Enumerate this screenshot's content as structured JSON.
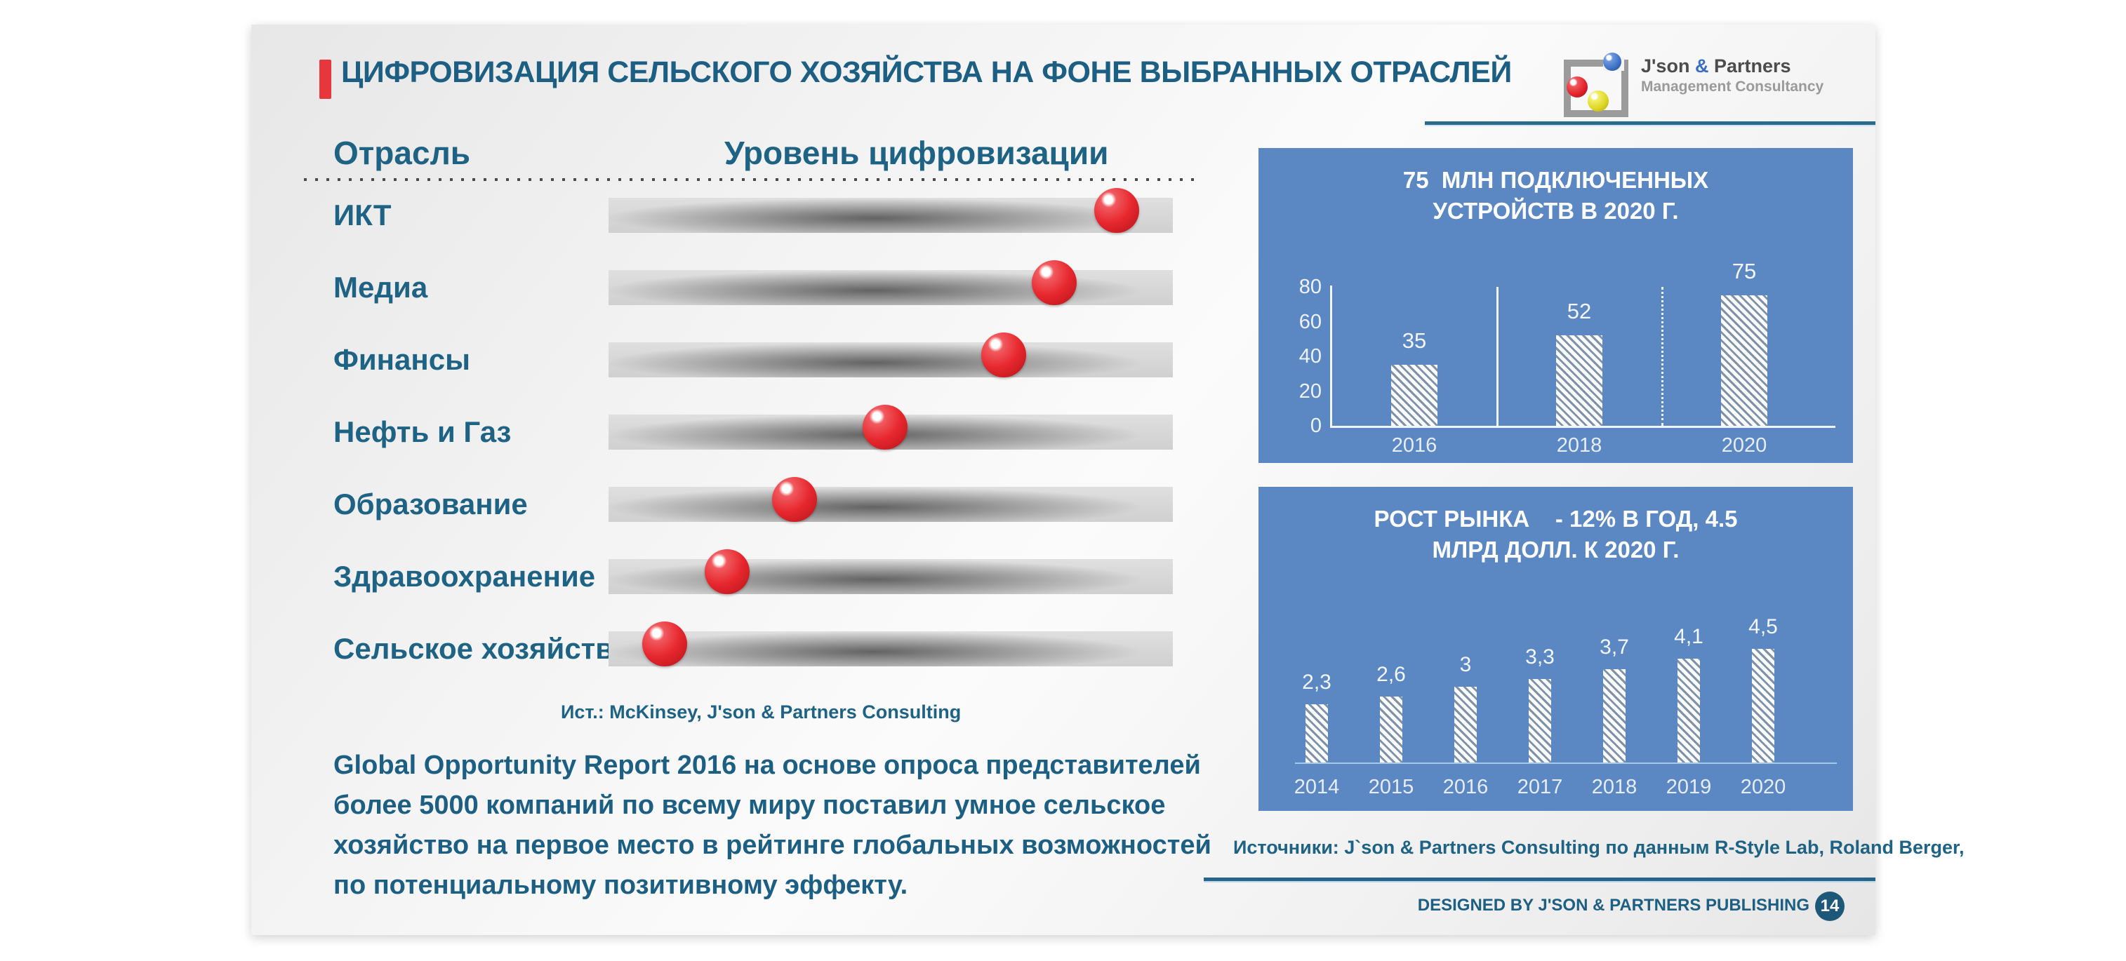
{
  "slide": {
    "title": "ЦИФРОВИЗАЦИЯ СЕЛЬСКОГО ХОЗЯЙСТВА НА ФОНЕ ВЫБРАННЫХ ОТРАСЛЕЙ",
    "page_number": "14",
    "header": {
      "industry": "Отрасль",
      "level": "Уровень цифровизации"
    },
    "left_source": "Ист.: McKinsey, J'son & Partners Consulting",
    "body_lines": [
      "Global Opportunity Report 2016 на основе опроса представителей",
      "более 5000 компаний по всему миру поставил умное сельское",
      "хозяйство на первое место в рейтинге глобальных возможностей",
      "по потенциальному позитивному эффекту."
    ],
    "logo": {
      "name_left": "J'son ",
      "amp": "&",
      "name_right": " Partners",
      "subtitle": "Management Consultancy"
    },
    "sources_line": "Источники: J`son & Partners Consulting по данным R-Style Lab, Roland Berger,",
    "designed_by": "DESIGNED BY J'SON & PARTNERS PUBLISHING"
  },
  "chart_data": [
    {
      "type": "scatter",
      "title": "Уровень цифровизации",
      "categories": [
        "ИКТ",
        "Медиа",
        "Финансы",
        "Нефть и Газ",
        "Образование",
        "Здравоохранение",
        "Сельское хозяйство"
      ],
      "values": [
        90,
        79,
        70,
        49,
        33,
        21,
        10
      ],
      "xlim": [
        0,
        100
      ],
      "note": "позиция красного шара вдоль серой шкалы, % от длины шкалы"
    },
    {
      "type": "bar",
      "title_lines": [
        "75  МЛН ПОДКЛЮЧЕННЫХ",
        "УСТРОЙСТВ В 2020 Г."
      ],
      "title": "75 МЛН ПОДКЛЮЧЕННЫХ УСТРОЙСТВ В 2020 Г.",
      "categories": [
        "2016",
        "2018",
        "2020"
      ],
      "values": [
        35,
        52,
        75
      ],
      "ylim": [
        0,
        80
      ],
      "yticks": [
        80,
        60,
        40,
        20,
        0
      ],
      "grid": false,
      "legend": false
    },
    {
      "type": "bar",
      "title_lines": [
        "РОСТ РЫНКА    - 12% В ГОД, 4.5",
        "МЛРД ДОЛЛ. К 2020 Г."
      ],
      "title": "РОСТ РЫНКА - 12% В ГОД, 4.5 МЛРД ДОЛЛ. К 2020 Г.",
      "categories": [
        "2014",
        "2015",
        "2016",
        "2017",
        "2018",
        "2019",
        "2020"
      ],
      "values": [
        2.3,
        2.6,
        3,
        3.3,
        3.7,
        4.1,
        4.5
      ],
      "value_labels": [
        "2,3",
        "2,6",
        "3",
        "3,3",
        "3,7",
        "4,1",
        "4,5"
      ],
      "ylim": [
        0,
        4.5
      ],
      "grid": false,
      "legend": false
    }
  ],
  "colors": {
    "accent_red": "#e8363d",
    "teal_text": "#1c5f82",
    "panel_blue": "#5b87c2",
    "ball_red": "#e7272e",
    "bar_gray": "#d5d5d5",
    "hatch_stripe": "#7e92aa",
    "footer_line_teal": "#26648a",
    "badge_bg": "#1d5878"
  }
}
